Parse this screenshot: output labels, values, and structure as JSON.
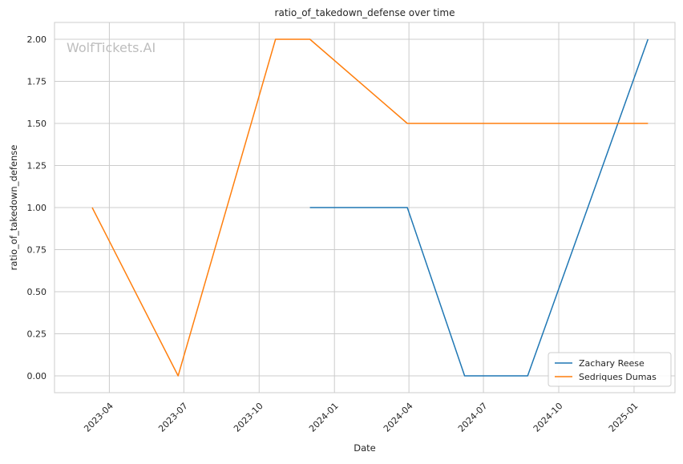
{
  "chart_data": {
    "type": "line",
    "title": "ratio_of_takedown_defense over time",
    "xlabel": "Date",
    "ylabel": "ratio_of_takedown_defense",
    "watermark": "WolfTickets.AI",
    "x_ticks": [
      "2023-04",
      "2023-07",
      "2023-10",
      "2024-01",
      "2024-04",
      "2024-07",
      "2024-10",
      "2025-01"
    ],
    "y_ticks": [
      "0.00",
      "0.25",
      "0.50",
      "0.75",
      "1.00",
      "1.25",
      "1.50",
      "1.75",
      "2.00"
    ],
    "xlim": [
      "2023-01-24",
      "2025-02-20"
    ],
    "ylim": [
      -0.1,
      2.1
    ],
    "grid": true,
    "legend_position": "lower-right",
    "series": [
      {
        "name": "Zachary Reese",
        "color": "#1f77b4",
        "points": [
          {
            "x": "2023-12-02",
            "y": 1.0
          },
          {
            "x": "2024-03-30",
            "y": 1.0
          },
          {
            "x": "2024-06-08",
            "y": 0.0
          },
          {
            "x": "2024-08-24",
            "y": 0.0
          },
          {
            "x": "2025-01-18",
            "y": 2.0
          }
        ]
      },
      {
        "name": "Sedriques Dumas",
        "color": "#ff7f0e",
        "points": [
          {
            "x": "2023-03-11",
            "y": 1.0
          },
          {
            "x": "2023-06-24",
            "y": 0.0
          },
          {
            "x": "2023-10-21",
            "y": 2.0
          },
          {
            "x": "2023-12-02",
            "y": 2.0
          },
          {
            "x": "2024-03-30",
            "y": 1.5
          },
          {
            "x": "2025-01-18",
            "y": 1.5
          }
        ]
      }
    ]
  }
}
